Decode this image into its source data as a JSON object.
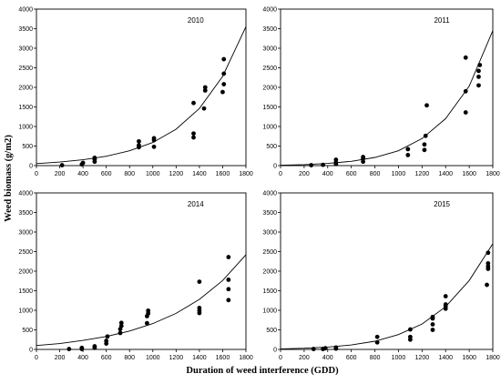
{
  "figure": {
    "ylabel": "Weed biomass (g/m2)",
    "xlabel": "Duration of weed interference (GDD)"
  },
  "chart_data": [
    {
      "type": "scatter",
      "title": "2010",
      "xlim": [
        0,
        1800
      ],
      "ylim": [
        0,
        4000
      ],
      "xticks": [
        0,
        200,
        400,
        600,
        800,
        1000,
        1200,
        1400,
        1600,
        1800
      ],
      "yticks": [
        0,
        500,
        1000,
        1500,
        2000,
        2500,
        3000,
        3500,
        4000
      ],
      "grid": false,
      "points": [
        [
          220,
          10
        ],
        [
          390,
          30
        ],
        [
          400,
          70
        ],
        [
          500,
          100
        ],
        [
          500,
          160
        ],
        [
          500,
          200
        ],
        [
          880,
          470
        ],
        [
          880,
          520
        ],
        [
          880,
          620
        ],
        [
          1010,
          480
        ],
        [
          1010,
          650
        ],
        [
          1010,
          700
        ],
        [
          1350,
          720
        ],
        [
          1350,
          820
        ],
        [
          1350,
          1600
        ],
        [
          1440,
          1460
        ],
        [
          1450,
          1920
        ],
        [
          1450,
          2000
        ],
        [
          1600,
          1880
        ],
        [
          1610,
          2080
        ],
        [
          1610,
          2350
        ],
        [
          1610,
          2720
        ]
      ],
      "fit_curve": {
        "x": [
          0,
          200,
          400,
          600,
          800,
          1000,
          1200,
          1400,
          1600,
          1800
        ],
        "y": [
          50,
          90,
          150,
          240,
          380,
          590,
          930,
          1460,
          2280,
          3550
        ]
      }
    },
    {
      "type": "scatter",
      "title": "2011",
      "xlim": [
        0,
        1800
      ],
      "ylim": [
        0,
        4000
      ],
      "xticks": [
        0,
        200,
        400,
        600,
        800,
        1000,
        1200,
        1400,
        1600,
        1800
      ],
      "yticks": [
        0,
        500,
        1000,
        1500,
        2000,
        2500,
        3000,
        3500,
        4000
      ],
      "grid": false,
      "points": [
        [
          260,
          10
        ],
        [
          360,
          20
        ],
        [
          470,
          40
        ],
        [
          470,
          80
        ],
        [
          470,
          150
        ],
        [
          700,
          100
        ],
        [
          700,
          180
        ],
        [
          700,
          220
        ],
        [
          1080,
          270
        ],
        [
          1080,
          420
        ],
        [
          1220,
          400
        ],
        [
          1220,
          540
        ],
        [
          1230,
          760
        ],
        [
          1240,
          1540
        ],
        [
          1570,
          1360
        ],
        [
          1570,
          1900
        ],
        [
          1570,
          2760
        ],
        [
          1680,
          2050
        ],
        [
          1680,
          2270
        ],
        [
          1680,
          2420
        ],
        [
          1690,
          2570
        ]
      ],
      "fit_curve": {
        "x": [
          0,
          200,
          400,
          600,
          800,
          1000,
          1200,
          1400,
          1600,
          1800
        ],
        "y": [
          10,
          25,
          55,
          110,
          210,
          380,
          690,
          1200,
          2030,
          3450
        ]
      }
    },
    {
      "type": "scatter",
      "title": "2014",
      "xlim": [
        0,
        1800
      ],
      "ylim": [
        0,
        4000
      ],
      "xticks": [
        0,
        200,
        400,
        600,
        800,
        1000,
        1200,
        1400,
        1600,
        1800
      ],
      "yticks": [
        0,
        500,
        1000,
        1500,
        2000,
        2500,
        3000,
        3500,
        4000
      ],
      "grid": false,
      "points": [
        [
          280,
          10
        ],
        [
          390,
          10
        ],
        [
          390,
          40
        ],
        [
          500,
          40
        ],
        [
          500,
          80
        ],
        [
          600,
          150
        ],
        [
          600,
          220
        ],
        [
          610,
          330
        ],
        [
          720,
          420
        ],
        [
          720,
          520
        ],
        [
          730,
          600
        ],
        [
          730,
          680
        ],
        [
          950,
          670
        ],
        [
          950,
          850
        ],
        [
          960,
          920
        ],
        [
          960,
          990
        ],
        [
          1400,
          930
        ],
        [
          1400,
          990
        ],
        [
          1400,
          1060
        ],
        [
          1400,
          1730
        ],
        [
          1650,
          1260
        ],
        [
          1650,
          1540
        ],
        [
          1650,
          1780
        ],
        [
          1650,
          2360
        ]
      ],
      "fit_curve": {
        "x": [
          0,
          200,
          400,
          600,
          800,
          1000,
          1200,
          1400,
          1600,
          1800
        ],
        "y": [
          100,
          150,
          230,
          330,
          470,
          660,
          920,
          1280,
          1760,
          2420
        ]
      }
    },
    {
      "type": "scatter",
      "title": "2015",
      "xlim": [
        0,
        1800
      ],
      "ylim": [
        0,
        4000
      ],
      "xticks": [
        0,
        200,
        400,
        600,
        800,
        1000,
        1200,
        1400,
        1600,
        1800
      ],
      "yticks": [
        0,
        500,
        1000,
        1500,
        2000,
        2500,
        3000,
        3500,
        4000
      ],
      "grid": false,
      "points": [
        [
          280,
          10
        ],
        [
          360,
          10
        ],
        [
          380,
          30
        ],
        [
          470,
          20
        ],
        [
          470,
          50
        ],
        [
          820,
          180
        ],
        [
          820,
          320
        ],
        [
          1100,
          250
        ],
        [
          1100,
          320
        ],
        [
          1100,
          510
        ],
        [
          1290,
          500
        ],
        [
          1290,
          640
        ],
        [
          1290,
          790
        ],
        [
          1290,
          830
        ],
        [
          1400,
          1040
        ],
        [
          1400,
          1100
        ],
        [
          1400,
          1150
        ],
        [
          1400,
          1360
        ],
        [
          1750,
          1650
        ],
        [
          1760,
          2060
        ],
        [
          1760,
          2120
        ],
        [
          1760,
          2200
        ],
        [
          1760,
          2470
        ]
      ],
      "fit_curve": {
        "x": [
          0,
          200,
          400,
          600,
          800,
          1000,
          1200,
          1400,
          1600,
          1800
        ],
        "y": [
          15,
          30,
          60,
          115,
          210,
          380,
          650,
          1090,
          1760,
          2700
        ]
      }
    }
  ]
}
